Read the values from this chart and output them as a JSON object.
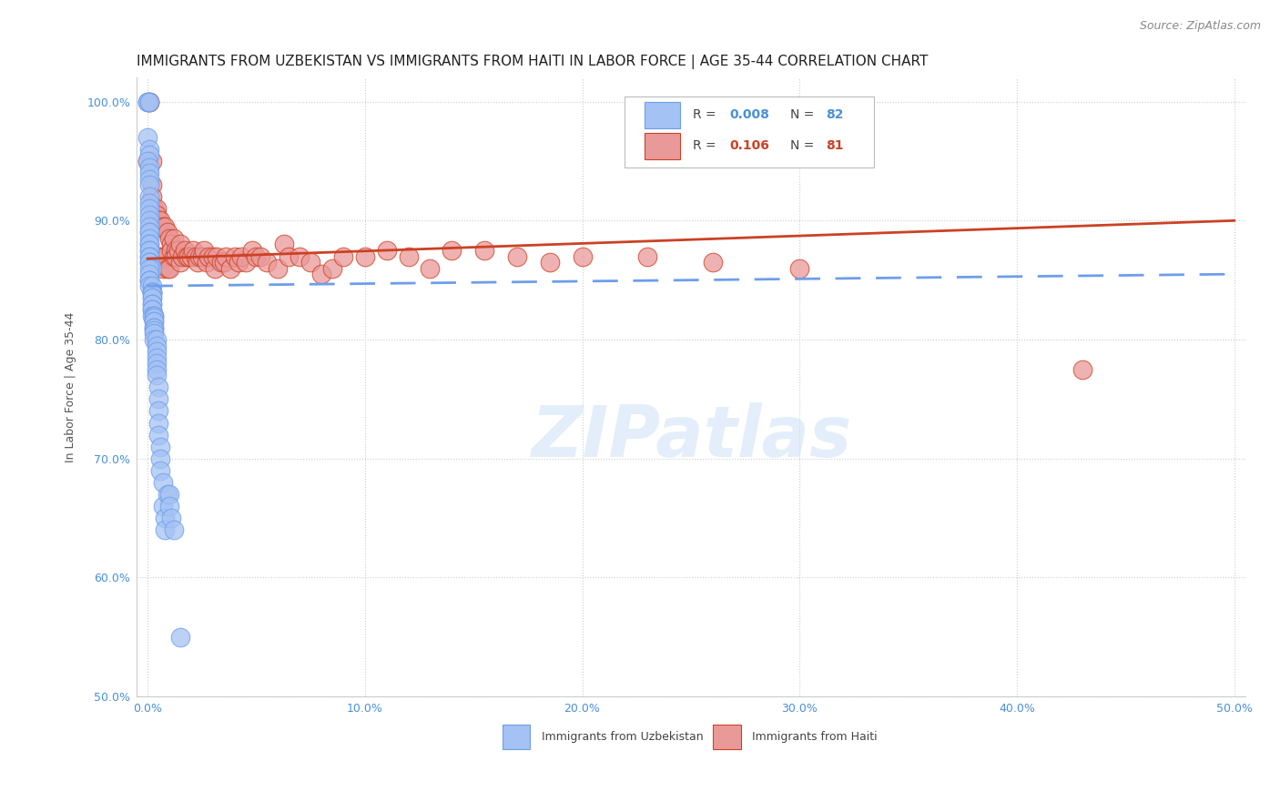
{
  "title": "IMMIGRANTS FROM UZBEKISTAN VS IMMIGRANTS FROM HAITI IN LABOR FORCE | AGE 35-44 CORRELATION CHART",
  "source": "Source: ZipAtlas.com",
  "ylabel_label": "In Labor Force | Age 35-44",
  "yticks": [
    0.5,
    0.6,
    0.7,
    0.8,
    0.9,
    1.0
  ],
  "ytick_labels": [
    "50.0%",
    "60.0%",
    "70.0%",
    "80.0%",
    "90.0%",
    "100.0%"
  ],
  "xticks": [
    0.0,
    0.1,
    0.2,
    0.3,
    0.4,
    0.5
  ],
  "xtick_labels": [
    "0.0%",
    "10.0%",
    "20.0%",
    "30.0%",
    "40.0%",
    "50.0%"
  ],
  "xlim": [
    -0.005,
    0.505
  ],
  "ylim": [
    0.5,
    1.02
  ],
  "watermark": "ZIPatlas",
  "uzbek_R": "0.008",
  "uzbek_N": "82",
  "haiti_R": "0.106",
  "haiti_N": "81",
  "uzbek_label": "Immigrants from Uzbekistan",
  "haiti_label": "Immigrants from Haiti",
  "uzbek_color": "#a4c2f4",
  "uzbek_edge": "#6d9eeb",
  "haiti_color": "#ea9999",
  "haiti_edge": "#cc4125",
  "uzbek_line_color": "#6d9eeb",
  "haiti_line_color": "#cc4125",
  "bg_color": "#ffffff",
  "grid_color": "#cccccc",
  "uzbekistan_x": [
    0.0,
    0.0,
    0.001,
    0.0,
    0.001,
    0.001,
    0.0,
    0.001,
    0.001,
    0.001,
    0.001,
    0.001,
    0.001,
    0.001,
    0.001,
    0.001,
    0.001,
    0.001,
    0.001,
    0.001,
    0.001,
    0.001,
    0.001,
    0.001,
    0.001,
    0.001,
    0.001,
    0.001,
    0.002,
    0.001,
    0.001,
    0.001,
    0.001,
    0.001,
    0.001,
    0.002,
    0.002,
    0.002,
    0.002,
    0.002,
    0.002,
    0.002,
    0.002,
    0.002,
    0.002,
    0.002,
    0.002,
    0.003,
    0.003,
    0.003,
    0.003,
    0.003,
    0.003,
    0.003,
    0.003,
    0.003,
    0.003,
    0.004,
    0.004,
    0.004,
    0.004,
    0.004,
    0.004,
    0.004,
    0.005,
    0.005,
    0.005,
    0.005,
    0.005,
    0.006,
    0.006,
    0.006,
    0.007,
    0.007,
    0.008,
    0.008,
    0.009,
    0.01,
    0.01,
    0.011,
    0.012,
    0.015
  ],
  "uzbekistan_y": [
    1.0,
    1.0,
    1.0,
    0.97,
    0.96,
    0.955,
    0.95,
    0.945,
    0.94,
    0.935,
    0.93,
    0.92,
    0.915,
    0.91,
    0.905,
    0.9,
    0.895,
    0.89,
    0.89,
    0.885,
    0.88,
    0.88,
    0.875,
    0.875,
    0.87,
    0.87,
    0.865,
    0.865,
    0.86,
    0.86,
    0.855,
    0.85,
    0.85,
    0.85,
    0.845,
    0.845,
    0.84,
    0.84,
    0.84,
    0.838,
    0.835,
    0.835,
    0.83,
    0.83,
    0.825,
    0.825,
    0.82,
    0.82,
    0.82,
    0.818,
    0.815,
    0.815,
    0.81,
    0.81,
    0.808,
    0.805,
    0.8,
    0.8,
    0.795,
    0.79,
    0.785,
    0.78,
    0.775,
    0.77,
    0.76,
    0.75,
    0.74,
    0.73,
    0.72,
    0.71,
    0.7,
    0.69,
    0.68,
    0.66,
    0.65,
    0.64,
    0.67,
    0.67,
    0.66,
    0.65,
    0.64,
    0.55
  ],
  "haiti_x": [
    0.0,
    0.001,
    0.001,
    0.002,
    0.002,
    0.002,
    0.003,
    0.003,
    0.004,
    0.004,
    0.005,
    0.005,
    0.005,
    0.006,
    0.006,
    0.007,
    0.007,
    0.008,
    0.008,
    0.009,
    0.009,
    0.01,
    0.01,
    0.011,
    0.011,
    0.012,
    0.012,
    0.013,
    0.013,
    0.014,
    0.015,
    0.015,
    0.016,
    0.017,
    0.018,
    0.019,
    0.02,
    0.021,
    0.022,
    0.023,
    0.024,
    0.025,
    0.026,
    0.027,
    0.028,
    0.03,
    0.031,
    0.032,
    0.034,
    0.035,
    0.036,
    0.038,
    0.04,
    0.042,
    0.043,
    0.045,
    0.048,
    0.05,
    0.052,
    0.055,
    0.06,
    0.063,
    0.065,
    0.07,
    0.075,
    0.08,
    0.085,
    0.09,
    0.1,
    0.11,
    0.12,
    0.13,
    0.14,
    0.155,
    0.17,
    0.185,
    0.2,
    0.23,
    0.26,
    0.3,
    0.43
  ],
  "haiti_y": [
    0.95,
    1.0,
    1.0,
    0.95,
    0.93,
    0.92,
    0.91,
    0.9,
    0.91,
    0.905,
    0.9,
    0.895,
    0.87,
    0.9,
    0.87,
    0.895,
    0.86,
    0.895,
    0.87,
    0.89,
    0.86,
    0.885,
    0.86,
    0.88,
    0.875,
    0.885,
    0.87,
    0.875,
    0.87,
    0.875,
    0.88,
    0.865,
    0.87,
    0.875,
    0.87,
    0.87,
    0.87,
    0.875,
    0.87,
    0.865,
    0.87,
    0.87,
    0.875,
    0.865,
    0.87,
    0.87,
    0.86,
    0.87,
    0.865,
    0.865,
    0.87,
    0.86,
    0.87,
    0.865,
    0.87,
    0.865,
    0.875,
    0.87,
    0.87,
    0.865,
    0.86,
    0.88,
    0.87,
    0.87,
    0.865,
    0.855,
    0.86,
    0.87,
    0.87,
    0.875,
    0.87,
    0.86,
    0.875,
    0.875,
    0.87,
    0.865,
    0.87,
    0.87,
    0.865,
    0.86,
    0.775
  ],
  "title_fontsize": 11,
  "source_fontsize": 9,
  "axis_label_fontsize": 9,
  "tick_fontsize": 9,
  "legend_fontsize": 10
}
